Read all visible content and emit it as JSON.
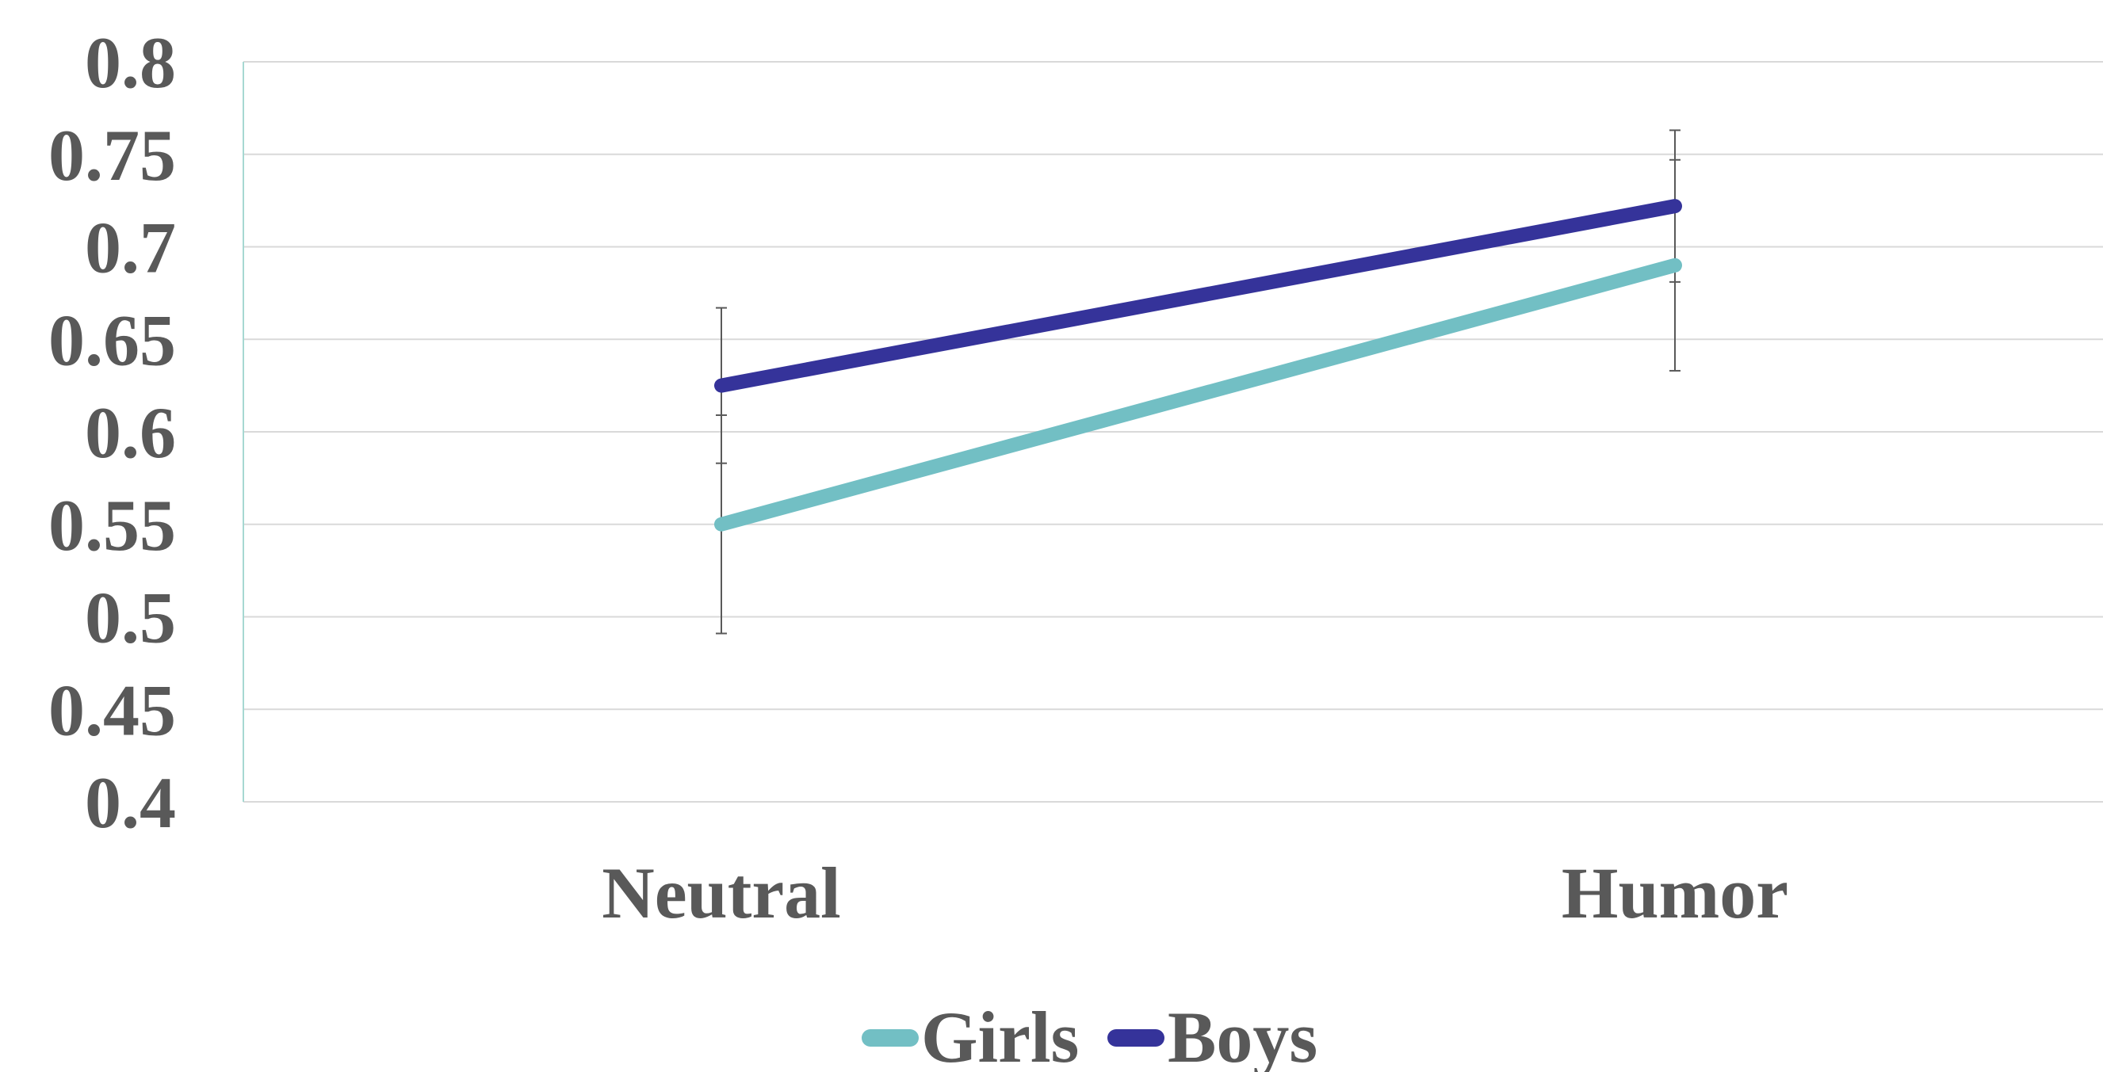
{
  "chart_data": {
    "type": "line",
    "title": "",
    "xlabel": "",
    "ylabel": "",
    "categories": [
      "Neutral",
      "Humor"
    ],
    "ylim": [
      0.4,
      0.8
    ],
    "yticks": [
      "0.8",
      "0.75",
      "0.7",
      "0.65",
      "0.6",
      "0.55",
      "0.5",
      "0.45",
      "0.4"
    ],
    "ytick_values": [
      0.8,
      0.75,
      0.7,
      0.65,
      0.6,
      0.55,
      0.5,
      0.45,
      0.4
    ],
    "grid": true,
    "legend_position": "bottom",
    "series": [
      {
        "name": "Girls",
        "color": "#72BFC4",
        "values": [
          0.55,
          0.69
        ],
        "error": [
          0.059,
          0.057
        ]
      },
      {
        "name": "Boys",
        "color": "#35339A",
        "values": [
          0.625,
          0.722
        ],
        "error": [
          0.042,
          0.041
        ]
      }
    ]
  }
}
